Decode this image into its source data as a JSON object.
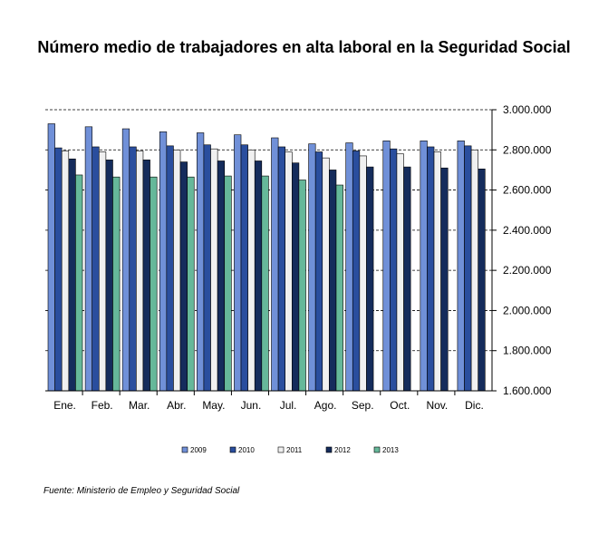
{
  "chart_data": {
    "type": "bar",
    "title": "Número medio de trabajadores en alta laboral en la Seguridad Social",
    "source": "Fuente: Ministerio de Empleo y Seguridad Social",
    "categories": [
      "Ene.",
      "Feb.",
      "Mar.",
      "Abr.",
      "May.",
      "Jun.",
      "Jul.",
      "Ago.",
      "Sep.",
      "Oct.",
      "Nov.",
      "Dic."
    ],
    "ylim": [
      1600000,
      3000000
    ],
    "y_ticks": [
      3000000,
      2800000,
      2600000,
      2400000,
      2200000,
      2000000,
      1800000,
      1600000
    ],
    "y_tick_labels": [
      "3.000.000",
      "2.800.000",
      "2.600.000",
      "2.400.000",
      "2.200.000",
      "2.000.000",
      "1.800.000",
      "1.600.000"
    ],
    "y_axis_side": "right",
    "legend_position": "bottom",
    "series": [
      {
        "name": "2009",
        "color": "#7090d8",
        "values": [
          2930000,
          2915000,
          2905000,
          2890000,
          2885000,
          2875000,
          2860000,
          2830000,
          2835000,
          2845000,
          2845000,
          2845000
        ]
      },
      {
        "name": "2010",
        "color": "#2a4e9e",
        "values": [
          2810000,
          2815000,
          2815000,
          2820000,
          2825000,
          2825000,
          2815000,
          2790000,
          2795000,
          2805000,
          2815000,
          2820000
        ]
      },
      {
        "name": "2011",
        "color": "#f0f0f0",
        "values": [
          2795000,
          2790000,
          2795000,
          2800000,
          2805000,
          2800000,
          2790000,
          2760000,
          2770000,
          2780000,
          2790000,
          2800000
        ]
      },
      {
        "name": "2012",
        "color": "#152c5c",
        "values": [
          2755000,
          2750000,
          2750000,
          2740000,
          2745000,
          2745000,
          2735000,
          2700000,
          2715000,
          2715000,
          2710000,
          2705000
        ]
      },
      {
        "name": "2013",
        "color": "#66b89a",
        "values": [
          2675000,
          2665000,
          2665000,
          2665000,
          2670000,
          2670000,
          2650000,
          2625000,
          null,
          null,
          null,
          null
        ]
      }
    ]
  }
}
